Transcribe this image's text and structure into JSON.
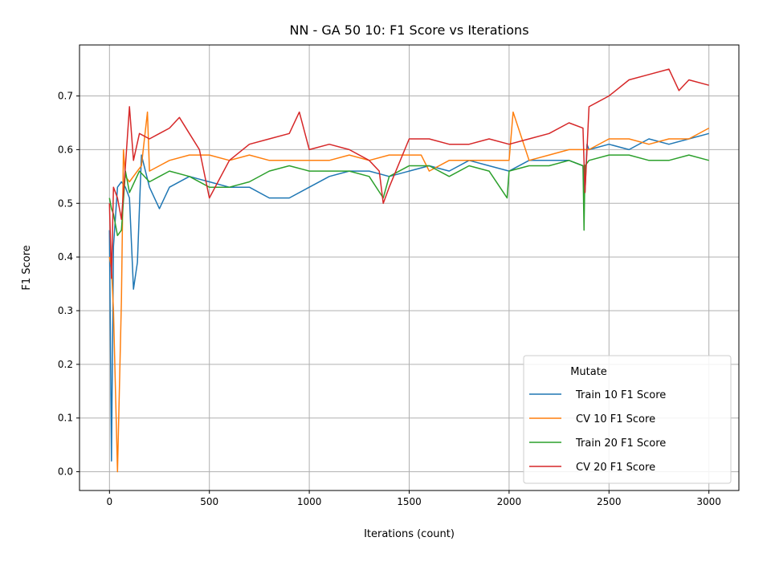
{
  "chart_data": {
    "type": "line",
    "title": "NN - GA 50 10: F1 Score vs Iterations",
    "xlabel": "Iterations (count)",
    "ylabel": "F1 Score",
    "xlim": [
      -150,
      3150
    ],
    "ylim": [
      -0.035,
      0.795
    ],
    "xticks": [
      0,
      500,
      1000,
      1500,
      2000,
      2500,
      3000
    ],
    "yticks": [
      0.0,
      0.1,
      0.2,
      0.3,
      0.4,
      0.5,
      0.6,
      0.7
    ],
    "ytick_labels": [
      "0.0",
      "0.1",
      "0.2",
      "0.3",
      "0.4",
      "0.5",
      "0.6",
      "0.7"
    ],
    "grid": true,
    "legend": {
      "title": "Mutate",
      "placement": "bottom-right"
    },
    "series": [
      {
        "name": "Train 10 F1 Score",
        "color": "#1f77b4",
        "x": [
          0,
          10,
          20,
          40,
          60,
          80,
          100,
          120,
          140,
          160,
          200,
          250,
          300,
          400,
          500,
          600,
          700,
          800,
          900,
          1000,
          1100,
          1200,
          1300,
          1400,
          1500,
          1600,
          1700,
          1800,
          1900,
          2000,
          2100,
          2200,
          2300,
          2370,
          2380,
          2390,
          2400,
          2500,
          2600,
          2700,
          2800,
          2900,
          3000
        ],
        "y": [
          0.45,
          0.02,
          0.42,
          0.53,
          0.54,
          0.53,
          0.51,
          0.34,
          0.39,
          0.59,
          0.53,
          0.49,
          0.53,
          0.55,
          0.54,
          0.53,
          0.53,
          0.51,
          0.51,
          0.53,
          0.55,
          0.56,
          0.56,
          0.55,
          0.56,
          0.57,
          0.56,
          0.58,
          0.57,
          0.56,
          0.58,
          0.58,
          0.58,
          0.57,
          0.52,
          0.61,
          0.6,
          0.61,
          0.6,
          0.62,
          0.61,
          0.62,
          0.63
        ]
      },
      {
        "name": "CV 10 F1 Score",
        "color": "#ff7f0e",
        "x": [
          0,
          10,
          20,
          40,
          60,
          70,
          80,
          100,
          140,
          160,
          190,
          200,
          250,
          300,
          400,
          500,
          600,
          700,
          800,
          900,
          1000,
          1100,
          1200,
          1300,
          1400,
          1500,
          1560,
          1600,
          1700,
          1800,
          1900,
          2000,
          2020,
          2100,
          2200,
          2300,
          2400,
          2500,
          2600,
          2700,
          2800,
          2900,
          3000
        ],
        "y": [
          0.4,
          0.38,
          0.3,
          0.0,
          0.32,
          0.6,
          0.55,
          0.54,
          0.56,
          0.57,
          0.67,
          0.56,
          0.57,
          0.58,
          0.59,
          0.59,
          0.58,
          0.59,
          0.58,
          0.58,
          0.58,
          0.58,
          0.59,
          0.58,
          0.59,
          0.59,
          0.59,
          0.56,
          0.58,
          0.58,
          0.58,
          0.58,
          0.67,
          0.58,
          0.59,
          0.6,
          0.6,
          0.62,
          0.62,
          0.61,
          0.62,
          0.62,
          0.64
        ]
      },
      {
        "name": "Train 20 F1 Score",
        "color": "#2ca02c",
        "x": [
          0,
          10,
          20,
          40,
          60,
          80,
          100,
          150,
          200,
          250,
          300,
          400,
          500,
          600,
          700,
          800,
          900,
          1000,
          1100,
          1200,
          1300,
          1370,
          1400,
          1500,
          1600,
          1700,
          1800,
          1900,
          1990,
          2000,
          2100,
          2200,
          2300,
          2370,
          2375,
          2380,
          2400,
          2500,
          2600,
          2700,
          2800,
          2900,
          3000
        ],
        "y": [
          0.51,
          0.49,
          0.48,
          0.44,
          0.45,
          0.56,
          0.52,
          0.56,
          0.54,
          0.55,
          0.56,
          0.55,
          0.53,
          0.53,
          0.54,
          0.56,
          0.57,
          0.56,
          0.56,
          0.56,
          0.55,
          0.51,
          0.55,
          0.57,
          0.57,
          0.55,
          0.57,
          0.56,
          0.51,
          0.56,
          0.57,
          0.57,
          0.58,
          0.57,
          0.45,
          0.57,
          0.58,
          0.59,
          0.59,
          0.58,
          0.58,
          0.59,
          0.58
        ]
      },
      {
        "name": "CV 20 F1 Score",
        "color": "#d62728",
        "x": [
          0,
          10,
          20,
          40,
          60,
          80,
          100,
          120,
          150,
          200,
          250,
          300,
          350,
          400,
          450,
          500,
          600,
          700,
          800,
          900,
          950,
          1000,
          1100,
          1200,
          1300,
          1350,
          1370,
          1400,
          1500,
          1600,
          1700,
          1800,
          1900,
          2000,
          2100,
          2200,
          2300,
          2370,
          2380,
          2400,
          2500,
          2600,
          2700,
          2800,
          2850,
          2900,
          3000
        ],
        "y": [
          0.5,
          0.36,
          0.53,
          0.51,
          0.47,
          0.57,
          0.68,
          0.58,
          0.63,
          0.62,
          0.63,
          0.64,
          0.66,
          0.63,
          0.6,
          0.51,
          0.58,
          0.61,
          0.62,
          0.63,
          0.67,
          0.6,
          0.61,
          0.6,
          0.58,
          0.56,
          0.5,
          0.53,
          0.62,
          0.62,
          0.61,
          0.61,
          0.62,
          0.61,
          0.62,
          0.63,
          0.65,
          0.64,
          0.52,
          0.68,
          0.7,
          0.73,
          0.74,
          0.75,
          0.71,
          0.73,
          0.72
        ]
      }
    ]
  }
}
